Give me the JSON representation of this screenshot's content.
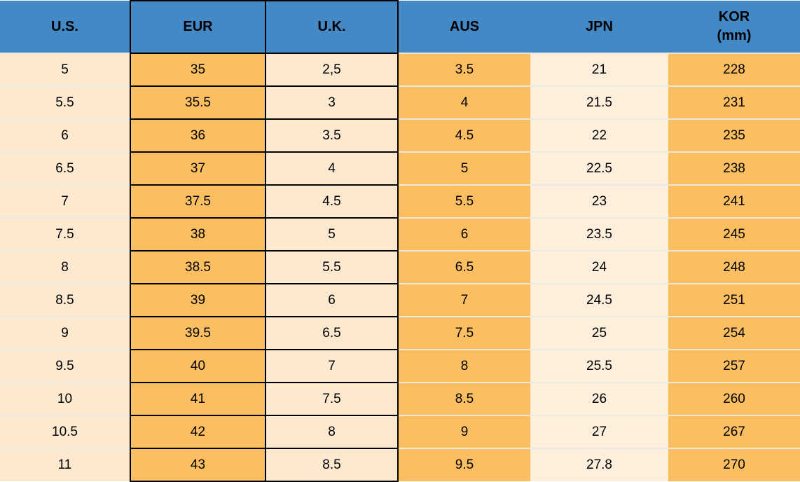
{
  "chart_data": {
    "type": "table",
    "columns": [
      {
        "id": "us",
        "header_lines": [
          "U.S."
        ]
      },
      {
        "id": "eur",
        "header_lines": [
          "EUR"
        ]
      },
      {
        "id": "uk",
        "header_lines": [
          "U.K."
        ]
      },
      {
        "id": "aus",
        "header_lines": [
          "AUS"
        ]
      },
      {
        "id": "jpn",
        "header_lines": [
          "JPN"
        ]
      },
      {
        "id": "kor",
        "header_lines": [
          "KOR",
          "(mm)"
        ]
      }
    ],
    "rows": [
      [
        "5",
        "35",
        "2,5",
        "3.5",
        "21",
        "228"
      ],
      [
        "5.5",
        "35.5",
        "3",
        "4",
        "21.5",
        "231"
      ],
      [
        "6",
        "36",
        "3.5",
        "4.5",
        "22",
        "235"
      ],
      [
        "6.5",
        "37",
        "4",
        "5",
        "22.5",
        "238"
      ],
      [
        "7",
        "37.5",
        "4.5",
        "5.5",
        "23",
        "241"
      ],
      [
        "7.5",
        "38",
        "5",
        "6",
        "23.5",
        "245"
      ],
      [
        "8",
        "38.5",
        "5.5",
        "6.5",
        "24",
        "248"
      ],
      [
        "8.5",
        "39",
        "6",
        "7",
        "24.5",
        "251"
      ],
      [
        "9",
        "39.5",
        "6.5",
        "7.5",
        "25",
        "254"
      ],
      [
        "9.5",
        "40",
        "7",
        "8",
        "25.5",
        "257"
      ],
      [
        "10",
        "41",
        "7.5",
        "8.5",
        "26",
        "260"
      ],
      [
        "10.5",
        "42",
        "8",
        "9",
        "27",
        "267"
      ],
      [
        "11",
        "43",
        "8.5",
        "9.5",
        "27.8",
        "270"
      ]
    ],
    "layout": {
      "bordered_columns": [
        "eur",
        "uk"
      ],
      "orange_columns": [
        "eur",
        "aus",
        "kor"
      ],
      "cream_columns": [
        "us",
        "uk",
        "jpn"
      ]
    }
  },
  "colors": {
    "header_blue": "#4289C6",
    "orange": "#FBBE61",
    "cream": "#FCE9CF",
    "cream_light": "#FDEFDB",
    "grid_black": "#000000",
    "row_separator": "#ECE9E2",
    "text": "#000000"
  }
}
